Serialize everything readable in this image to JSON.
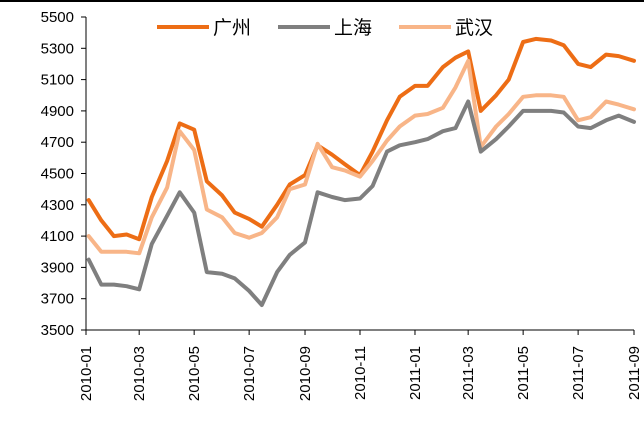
{
  "chart_data": {
    "type": "line",
    "title": "",
    "xlabel": "",
    "ylabel": "",
    "ylim": [
      3500,
      5500
    ],
    "yticks": [
      3500,
      3700,
      3900,
      4100,
      4300,
      4500,
      4700,
      4900,
      5100,
      5300,
      5500
    ],
    "xticks": [
      "2010-01",
      "2010-03",
      "2010-05",
      "2010-07",
      "2010-09",
      "2010-11",
      "2011-01",
      "2011-03",
      "2011-05",
      "2011-07",
      "2011-09"
    ],
    "x": [
      "2010-01-04",
      "2010-01-18",
      "2010-02-01",
      "2010-02-15",
      "2010-03-01",
      "2010-03-15",
      "2010-04-01",
      "2010-04-15",
      "2010-05-01",
      "2010-05-15",
      "2010-06-01",
      "2010-06-15",
      "2010-07-01",
      "2010-07-15",
      "2010-08-01",
      "2010-08-15",
      "2010-09-01",
      "2010-09-15",
      "2010-10-01",
      "2010-10-15",
      "2010-11-01",
      "2010-11-15",
      "2010-12-01",
      "2010-12-15",
      "2011-01-01",
      "2011-01-15",
      "2011-02-01",
      "2011-02-15",
      "2011-03-01",
      "2011-03-15",
      "2011-04-01",
      "2011-04-15",
      "2011-05-01",
      "2011-05-15",
      "2011-06-01",
      "2011-06-15",
      "2011-07-01",
      "2011-07-15",
      "2011-08-01",
      "2011-08-15",
      "2011-09-01"
    ],
    "series": [
      {
        "name": "广州",
        "color": "#ED6D15",
        "values": [
          4330,
          4200,
          4100,
          4110,
          4080,
          4350,
          4580,
          4820,
          4780,
          4450,
          4360,
          4250,
          4210,
          4160,
          4300,
          4430,
          4490,
          4680,
          4620,
          4560,
          4490,
          4640,
          4840,
          4990,
          5060,
          5060,
          5180,
          5240,
          5280,
          4900,
          5000,
          5100,
          5340,
          5360,
          5350,
          5320,
          5200,
          5180,
          5260,
          5250,
          5220
        ]
      },
      {
        "name": "上海",
        "color": "#7F7F7F",
        "values": [
          3950,
          3790,
          3790,
          3780,
          3760,
          4050,
          4230,
          4380,
          4250,
          3870,
          3860,
          3830,
          3750,
          3660,
          3870,
          3980,
          4060,
          4380,
          4350,
          4330,
          4340,
          4420,
          4640,
          4680,
          4700,
          4720,
          4770,
          4790,
          4960,
          4640,
          4720,
          4800,
          4900,
          4900,
          4900,
          4890,
          4800,
          4790,
          4840,
          4870,
          4830
        ]
      },
      {
        "name": "武汉",
        "color": "#F8B588",
        "values": [
          4100,
          4000,
          4000,
          4000,
          3990,
          4220,
          4410,
          4770,
          4650,
          4270,
          4220,
          4120,
          4090,
          4120,
          4220,
          4400,
          4430,
          4690,
          4540,
          4520,
          4480,
          4580,
          4710,
          4800,
          4870,
          4880,
          4920,
          5050,
          5220,
          4670,
          4800,
          4880,
          4990,
          5000,
          5000,
          4990,
          4840,
          4860,
          4960,
          4940,
          4910
        ]
      }
    ],
    "legend": "top",
    "grid": false
  }
}
